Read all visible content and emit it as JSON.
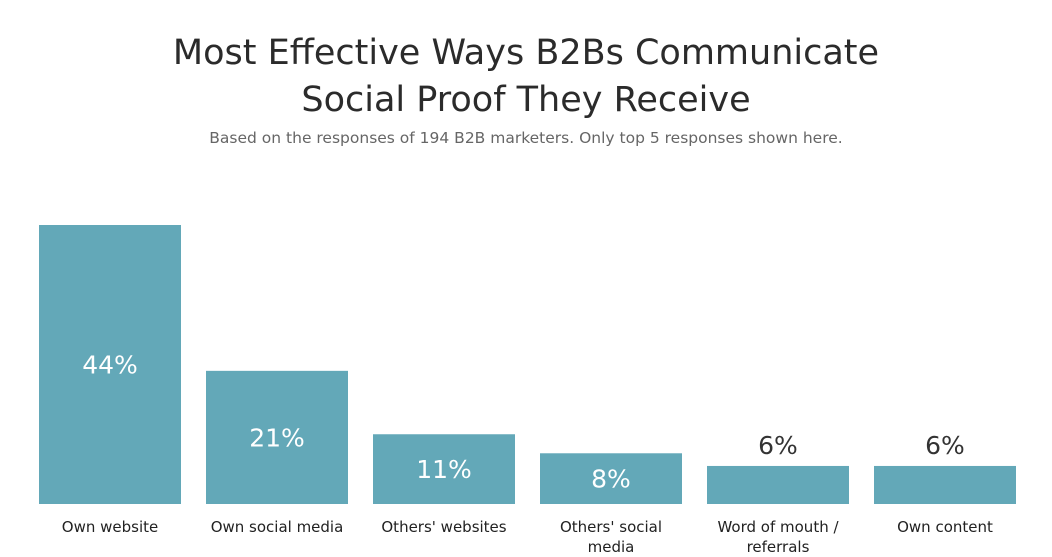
{
  "chart_data": {
    "type": "bar",
    "title_lines": [
      "Most Effective Ways B2Bs Communicate",
      "Social Proof They Receive"
    ],
    "subtitle": "Based on the responses of 194 B2B marketers. Only top 5 responses shown here.",
    "categories": [
      [
        "Own website"
      ],
      [
        "Own social media"
      ],
      [
        "Others' websites"
      ],
      [
        "Others' social",
        "media"
      ],
      [
        "Word of mouth /",
        "referrals"
      ],
      [
        "Own content"
      ]
    ],
    "values": [
      44,
      21,
      11,
      8,
      6,
      6
    ],
    "value_labels": [
      "44%",
      "21%",
      "11%",
      "8%",
      "6%",
      "6%"
    ],
    "ylim": [
      0,
      44
    ],
    "grid": false,
    "legend": "none",
    "bar_color": "#63a8b8",
    "inside_label_color": "#ffffff",
    "outside_label_color": "#333333"
  }
}
